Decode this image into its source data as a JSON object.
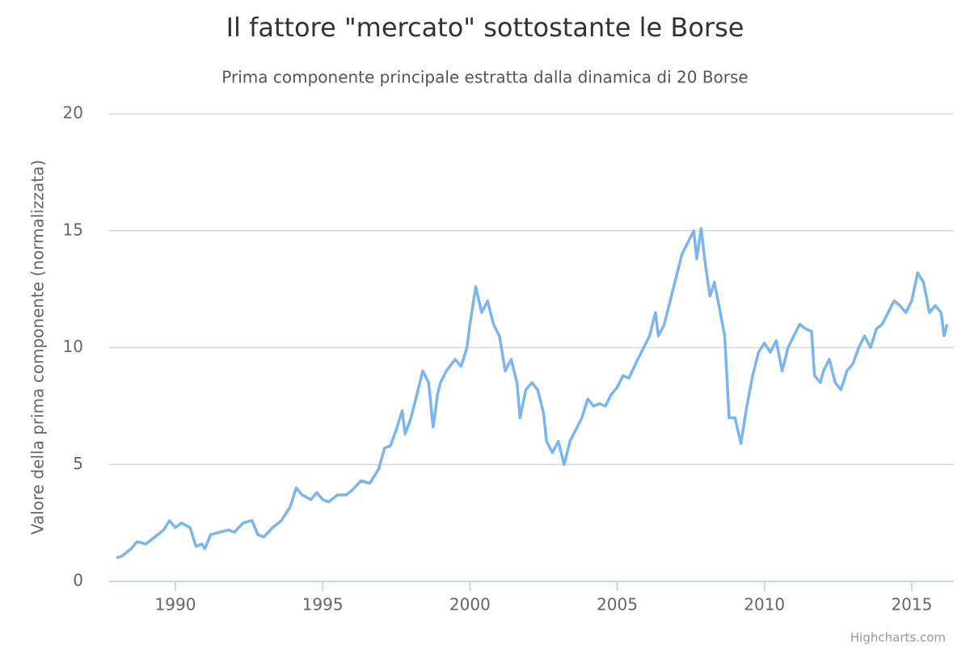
{
  "chart_data": {
    "type": "line",
    "title": "Il fattore \"mercato\" sottostante le Borse",
    "subtitle": "Prima componente principale estratta dalla dinamica di 20 Borse",
    "y_label": "Valore della prima componente (normalizzata)",
    "credits": "Highcharts.com",
    "x": [
      1988.0,
      1988.2,
      1988.5,
      1988.7,
      1989.0,
      1989.3,
      1989.6,
      1989.8,
      1990.0,
      1990.2,
      1990.5,
      1990.7,
      1990.9,
      1991.0,
      1991.2,
      1991.5,
      1991.8,
      1992.0,
      1992.3,
      1992.6,
      1992.8,
      1993.0,
      1993.3,
      1993.6,
      1993.9,
      1994.1,
      1994.3,
      1994.6,
      1994.8,
      1995.0,
      1995.2,
      1995.5,
      1995.8,
      1996.0,
      1996.3,
      1996.6,
      1996.9,
      1997.1,
      1997.3,
      1997.5,
      1997.7,
      1997.8,
      1998.0,
      1998.2,
      1998.4,
      1998.6,
      1998.75,
      1998.9,
      1999.0,
      1999.2,
      1999.5,
      1999.7,
      1999.9,
      2000.0,
      2000.2,
      2000.4,
      2000.6,
      2000.8,
      2001.0,
      2001.2,
      2001.4,
      2001.6,
      2001.7,
      2001.9,
      2002.1,
      2002.3,
      2002.5,
      2002.6,
      2002.8,
      2003.0,
      2003.2,
      2003.4,
      2003.6,
      2003.8,
      2004.0,
      2004.2,
      2004.4,
      2004.6,
      2004.8,
      2005.0,
      2005.2,
      2005.4,
      2005.7,
      2005.9,
      2006.1,
      2006.3,
      2006.4,
      2006.6,
      2006.8,
      2007.0,
      2007.2,
      2007.4,
      2007.6,
      2007.7,
      2007.85,
      2008.0,
      2008.15,
      2008.3,
      2008.5,
      2008.65,
      2008.8,
      2009.0,
      2009.2,
      2009.4,
      2009.6,
      2009.8,
      2010.0,
      2010.2,
      2010.4,
      2010.6,
      2010.8,
      2011.0,
      2011.2,
      2011.4,
      2011.6,
      2011.7,
      2011.9,
      2012.0,
      2012.2,
      2012.4,
      2012.6,
      2012.8,
      2013.0,
      2013.2,
      2013.4,
      2013.6,
      2013.8,
      2014.0,
      2014.2,
      2014.4,
      2014.6,
      2014.8,
      2015.0,
      2015.2,
      2015.4,
      2015.6,
      2015.8,
      2016.0,
      2016.1,
      2016.2
    ],
    "series": [
      {
        "name": "Prima componente",
        "color": "#7cb5ec",
        "values": [
          1.0,
          1.1,
          1.4,
          1.7,
          1.6,
          1.9,
          2.2,
          2.6,
          2.3,
          2.5,
          2.3,
          1.5,
          1.6,
          1.4,
          2.0,
          2.1,
          2.2,
          2.1,
          2.5,
          2.6,
          2.0,
          1.9,
          2.3,
          2.6,
          3.2,
          4.0,
          3.7,
          3.5,
          3.8,
          3.5,
          3.4,
          3.7,
          3.7,
          3.9,
          4.3,
          4.2,
          4.8,
          5.7,
          5.8,
          6.5,
          7.3,
          6.3,
          7.0,
          8.0,
          9.0,
          8.5,
          6.6,
          8.0,
          8.5,
          9.0,
          9.5,
          9.2,
          10.0,
          11.0,
          12.6,
          11.5,
          12.0,
          11.0,
          10.5,
          9.0,
          9.5,
          8.5,
          7.0,
          8.2,
          8.5,
          8.2,
          7.2,
          6.0,
          5.5,
          6.0,
          5.0,
          6.0,
          6.5,
          7.0,
          7.8,
          7.5,
          7.6,
          7.5,
          8.0,
          8.3,
          8.8,
          8.7,
          9.5,
          10.0,
          10.5,
          11.5,
          10.5,
          11.0,
          12.0,
          13.0,
          14.0,
          14.5,
          15.0,
          13.8,
          15.1,
          13.5,
          12.2,
          12.8,
          11.5,
          10.5,
          7.0,
          7.0,
          5.9,
          7.5,
          8.8,
          9.8,
          10.2,
          9.8,
          10.3,
          9.0,
          10.0,
          10.5,
          11.0,
          10.8,
          10.7,
          8.8,
          8.5,
          9.0,
          9.5,
          8.5,
          8.2,
          9.0,
          9.3,
          10.0,
          10.5,
          10.0,
          10.8,
          11.0,
          11.5,
          12.0,
          11.8,
          11.5,
          12.0,
          13.2,
          12.8,
          11.5,
          11.8,
          11.5,
          10.5,
          11.0
        ]
      }
    ],
    "xlim": [
      1987.75,
      2016.43
    ],
    "xticks": [
      1990,
      1995,
      2000,
      2005,
      2010,
      2015
    ],
    "ylim": [
      0,
      20
    ],
    "yticks": [
      0,
      5,
      10,
      15,
      20
    ],
    "grid": true
  }
}
